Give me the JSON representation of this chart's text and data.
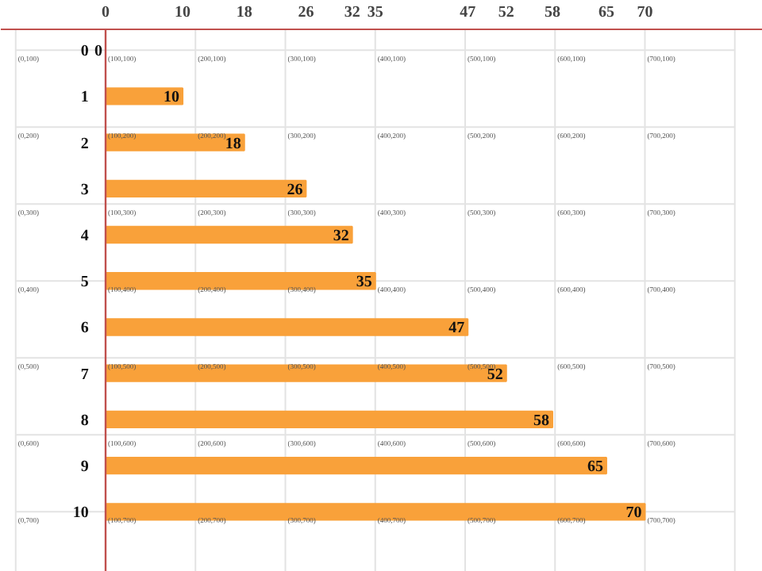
{
  "chart_data": {
    "type": "bar",
    "orientation": "horizontal",
    "categories": [
      "0",
      "1",
      "2",
      "3",
      "4",
      "5",
      "6",
      "7",
      "8",
      "9",
      "10"
    ],
    "values": [
      0,
      10,
      18,
      26,
      32,
      35,
      47,
      52,
      58,
      65,
      70
    ],
    "color": "#f9a13a",
    "xlim": [
      -13.6,
      85.3
    ],
    "xticks": [
      0,
      10,
      18,
      26,
      32,
      35,
      47,
      52,
      58,
      65,
      70
    ],
    "data_labels": true,
    "grid": true,
    "annotations": [
      "(0,100)",
      "(100,100)",
      "(200,100)",
      "(300,100)",
      "(400,100)",
      "(500,100)",
      "(600,100)",
      "(700,100)",
      "(0,200)",
      "(100,200)",
      "(200,200)",
      "(300,200)",
      "(400,200)",
      "(500,200)",
      "(600,200)",
      "(700,200)",
      "(0,300)",
      "(100,300)",
      "(200,300)",
      "(300,300)",
      "(400,300)",
      "(500,300)",
      "(600,300)",
      "(700,300)",
      "(0,400)",
      "(100,400)",
      "(200,400)",
      "(300,400)",
      "(400,400)",
      "(500,400)",
      "(600,400)",
      "(700,400)",
      "(0,500)",
      "(100,500)",
      "(200,500)",
      "(300,500)",
      "(400,500)",
      "(500,500)",
      "(600,500)",
      "(700,500)",
      "(0,600)",
      "(100,600)",
      "(200,600)",
      "(300,600)",
      "(400,600)",
      "(500,600)",
      "(600,600)",
      "(700,600)",
      "(0,700)",
      "(100,700)",
      "(200,700)",
      "(300,700)",
      "(400,700)",
      "(500,700)",
      "(600,700)",
      "(700,700)"
    ]
  }
}
